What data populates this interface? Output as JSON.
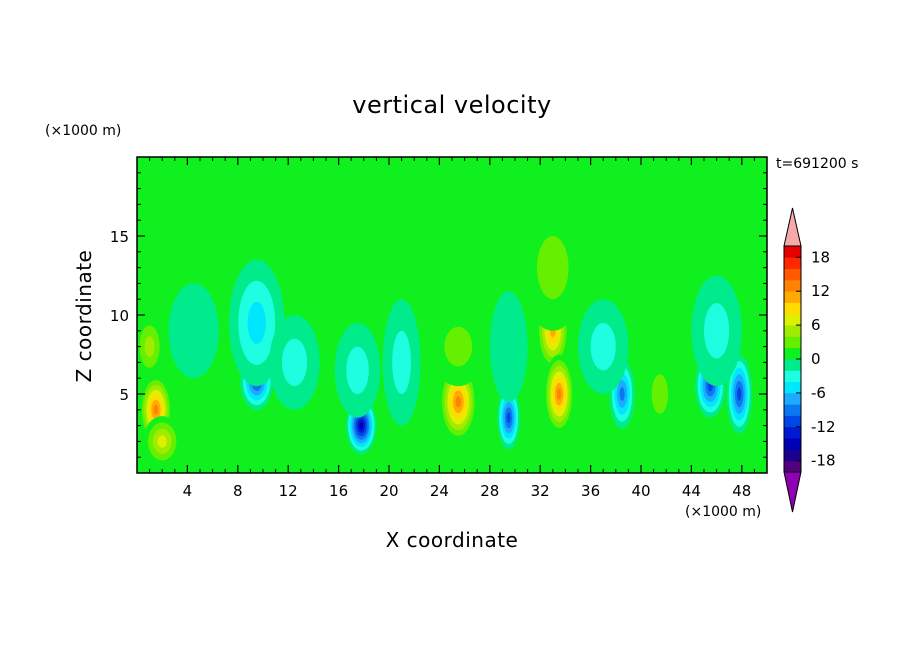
{
  "chart_data": {
    "type": "heatmap",
    "title": "vertical velocity",
    "xlabel": "X coordinate",
    "ylabel": "Z coordinate",
    "x_unit": "(×1000 m)",
    "y_unit": "(×1000 m)",
    "time_label": "t=691200 s",
    "xlim": [
      0,
      50
    ],
    "ylim": [
      0,
      20
    ],
    "x_ticks": [
      4,
      8,
      12,
      16,
      20,
      24,
      28,
      32,
      36,
      40,
      44,
      48
    ],
    "y_ticks": [
      5,
      10,
      15
    ],
    "colorbar": {
      "levels": [
        -20,
        -18,
        -16,
        -14,
        -12,
        -10,
        -8,
        -6,
        -4,
        -2,
        0,
        2,
        4,
        6,
        8,
        10,
        12,
        14,
        16,
        18,
        20
      ],
      "tick_labels": [
        "18",
        "12",
        "6",
        "0",
        "-6",
        "-12",
        "-18"
      ],
      "tick_values": [
        18,
        12,
        6,
        0,
        -6,
        -12,
        -18
      ],
      "colors": [
        "#52007f",
        "#1a008c",
        "#0000b4",
        "#0019d2",
        "#0046e6",
        "#0a78f0",
        "#1eaaff",
        "#00e6ff",
        "#1effe1",
        "#00eb8c",
        "#0ff01e",
        "#64f000",
        "#a0eb00",
        "#dcf000",
        "#ffdc00",
        "#ffaa00",
        "#ff8200",
        "#ff5a00",
        "#ff2800",
        "#e60000"
      ],
      "over_color": "#f7a8a8",
      "under_color": "#8f00b4"
    },
    "cells": [
      {
        "x": 1.5,
        "z": 4.0,
        "value": 14,
        "sx": 1.3,
        "sz": 2.2
      },
      {
        "x": 1.0,
        "z": 8.0,
        "value": 6,
        "sx": 1.2,
        "sz": 2.0
      },
      {
        "x": 2.0,
        "z": 2.0,
        "value": 8,
        "sx": 1.5,
        "sz": 1.6
      },
      {
        "x": 4.5,
        "z": 9.0,
        "value": -2,
        "sx": 2.0,
        "sz": 3.0
      },
      {
        "x": 9.5,
        "z": 5.8,
        "value": -12,
        "sx": 1.3,
        "sz": 1.8
      },
      {
        "x": 9.5,
        "z": 9.5,
        "value": -6,
        "sx": 2.2,
        "sz": 4.0
      },
      {
        "x": 12.5,
        "z": 7.0,
        "value": -4,
        "sx": 2.0,
        "sz": 3.0
      },
      {
        "x": 17.8,
        "z": 3.0,
        "value": -16,
        "sx": 1.2,
        "sz": 1.8
      },
      {
        "x": 17.5,
        "z": 6.5,
        "value": -4,
        "sx": 1.8,
        "sz": 3.0
      },
      {
        "x": 21.0,
        "z": 7.0,
        "value": -4,
        "sx": 1.5,
        "sz": 4.0
      },
      {
        "x": 25.5,
        "z": 4.5,
        "value": 14,
        "sx": 1.5,
        "sz": 2.5
      },
      {
        "x": 25.5,
        "z": 8.0,
        "value": 4,
        "sx": 2.2,
        "sz": 2.5
      },
      {
        "x": 29.5,
        "z": 3.5,
        "value": -12,
        "sx": 0.9,
        "sz": 2.0
      },
      {
        "x": 29.5,
        "z": 8.0,
        "value": -2,
        "sx": 1.5,
        "sz": 3.5
      },
      {
        "x": 33.0,
        "z": 9.0,
        "value": 12,
        "sx": 1.3,
        "sz": 2.5
      },
      {
        "x": 33.5,
        "z": 5.0,
        "value": 14,
        "sx": 1.2,
        "sz": 2.5
      },
      {
        "x": 33.0,
        "z": 13.0,
        "value": 4,
        "sx": 2.5,
        "sz": 4.0
      },
      {
        "x": 38.5,
        "z": 5.0,
        "value": -10,
        "sx": 1.0,
        "sz": 2.2
      },
      {
        "x": 37.0,
        "z": 8.0,
        "value": -4,
        "sx": 2.0,
        "sz": 3.0
      },
      {
        "x": 41.5,
        "z": 5.0,
        "value": 4,
        "sx": 1.3,
        "sz": 2.5
      },
      {
        "x": 45.5,
        "z": 5.5,
        "value": -12,
        "sx": 1.2,
        "sz": 2.0
      },
      {
        "x": 47.8,
        "z": 5.0,
        "value": -12,
        "sx": 1.0,
        "sz": 2.5
      },
      {
        "x": 46.0,
        "z": 9.0,
        "value": -4,
        "sx": 2.0,
        "sz": 3.5
      }
    ],
    "grid": false
  }
}
